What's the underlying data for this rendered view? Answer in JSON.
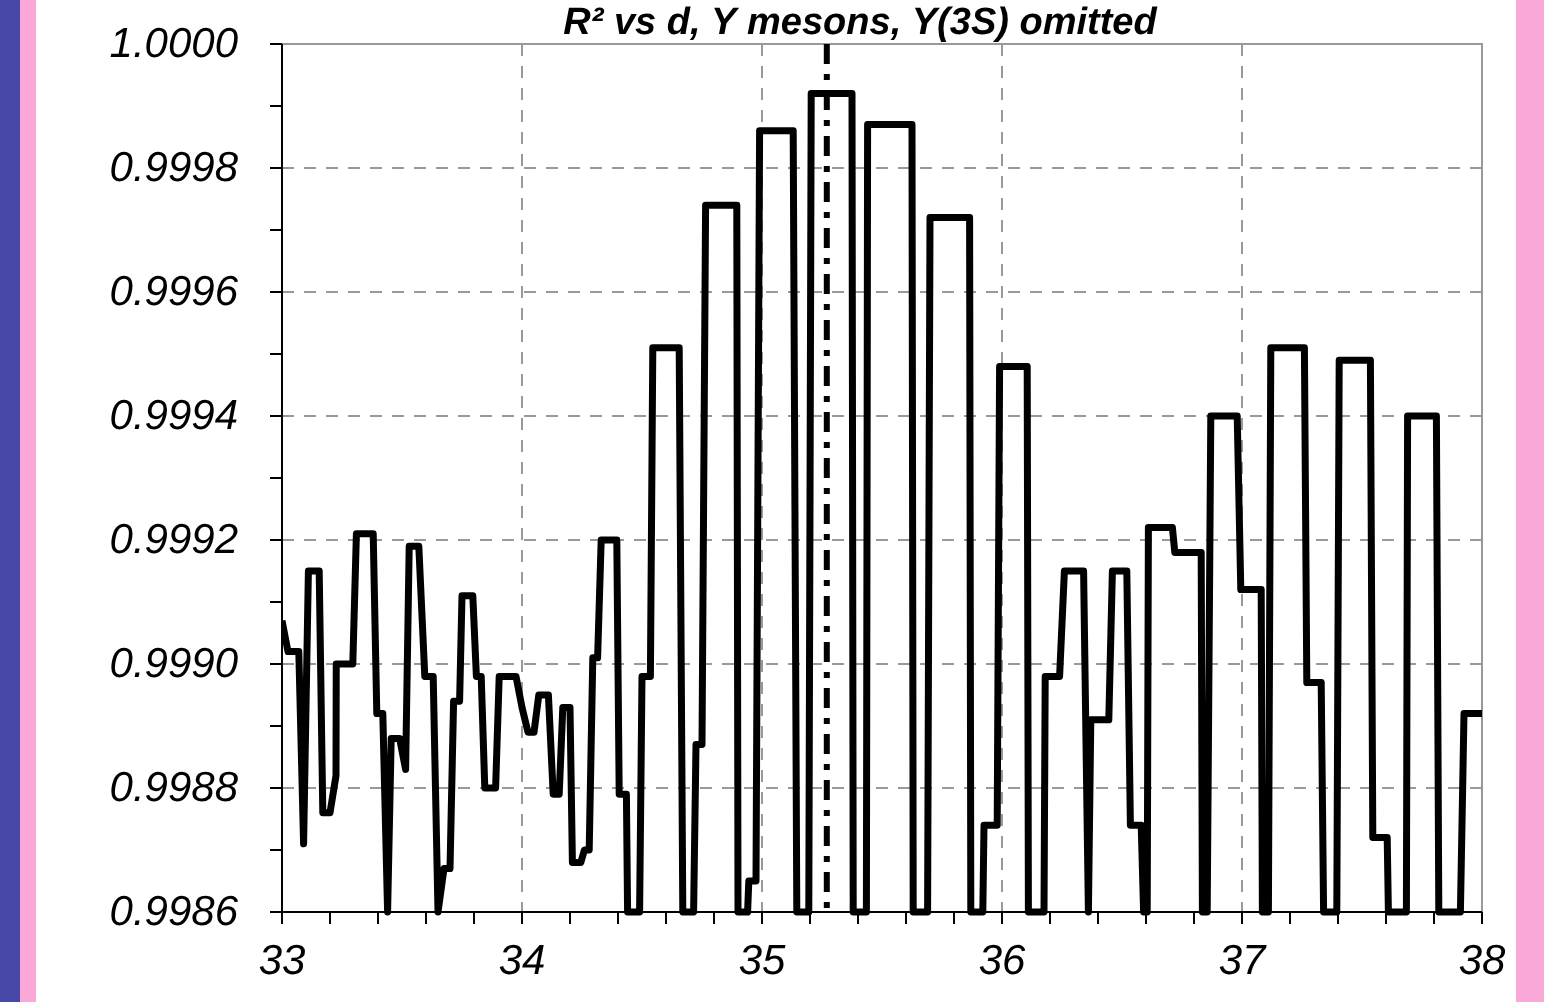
{
  "chart_data": {
    "type": "line",
    "title": "R² vs d, Υ mesons, Υ(3S) omitted",
    "x": [
      33.0,
      33.025,
      33.07,
      33.09,
      33.11,
      33.155,
      33.17,
      33.2,
      33.225,
      33.226,
      33.295,
      33.31,
      33.38,
      33.395,
      33.42,
      33.44,
      33.455,
      33.49,
      33.515,
      33.53,
      33.57,
      33.595,
      33.63,
      33.65,
      33.675,
      33.7,
      33.715,
      33.74,
      33.75,
      33.795,
      33.81,
      33.83,
      33.845,
      33.89,
      33.905,
      33.975,
      34.0,
      34.025,
      34.05,
      34.07,
      34.11,
      34.13,
      34.155,
      34.17,
      34.2,
      34.21,
      34.245,
      34.26,
      34.28,
      34.295,
      34.315,
      34.33,
      34.395,
      34.405,
      34.435,
      34.44,
      34.49,
      34.5,
      34.535,
      34.545,
      34.655,
      34.67,
      34.715,
      34.725,
      34.75,
      34.765,
      34.895,
      34.9,
      34.94,
      34.945,
      34.975,
      34.99,
      35.13,
      35.145,
      35.195,
      35.205,
      35.375,
      35.38,
      35.435,
      35.44,
      35.625,
      35.63,
      35.69,
      35.7,
      35.865,
      35.87,
      35.92,
      35.925,
      35.98,
      35.99,
      36.105,
      36.11,
      36.175,
      36.18,
      36.24,
      36.26,
      36.34,
      36.36,
      36.37,
      36.445,
      36.46,
      36.52,
      36.535,
      36.58,
      36.59,
      36.605,
      36.61,
      36.71,
      36.72,
      36.83,
      36.835,
      36.855,
      36.87,
      36.98,
      36.995,
      37.08,
      37.085,
      37.11,
      37.12,
      37.26,
      37.27,
      37.33,
      37.34,
      37.395,
      37.405,
      37.535,
      37.545,
      37.605,
      37.61,
      37.685,
      37.69,
      37.81,
      37.82,
      37.91,
      37.925,
      38.0
    ],
    "series": [
      {
        "color": "#000000",
        "values": [
          0.99907,
          0.99902,
          0.99902,
          0.99871,
          0.99915,
          0.99915,
          0.99876,
          0.99876,
          0.99882,
          0.999,
          0.999,
          0.99921,
          0.99921,
          0.99892,
          0.99892,
          0.9986,
          0.99888,
          0.99888,
          0.99883,
          0.99919,
          0.99919,
          0.99898,
          0.99898,
          0.9986,
          0.99867,
          0.99867,
          0.99894,
          0.99894,
          0.99911,
          0.99911,
          0.99898,
          0.99898,
          0.9988,
          0.9988,
          0.99898,
          0.99898,
          0.99893,
          0.99889,
          0.99889,
          0.99895,
          0.99895,
          0.99879,
          0.99879,
          0.99893,
          0.99893,
          0.99868,
          0.99868,
          0.9987,
          0.9987,
          0.99901,
          0.99901,
          0.9992,
          0.9992,
          0.99879,
          0.99879,
          0.9986,
          0.9986,
          0.99898,
          0.99898,
          0.99951,
          0.99951,
          0.9986,
          0.9986,
          0.99887,
          0.99887,
          0.99974,
          0.99974,
          0.9986,
          0.9986,
          0.99865,
          0.99865,
          0.99986,
          0.99986,
          0.9986,
          0.9986,
          0.99992,
          0.99992,
          0.9986,
          0.9986,
          0.99987,
          0.99987,
          0.9986,
          0.9986,
          0.99972,
          0.99972,
          0.9986,
          0.9986,
          0.99874,
          0.99874,
          0.99948,
          0.99948,
          0.9986,
          0.9986,
          0.99898,
          0.99898,
          0.99915,
          0.99915,
          0.9986,
          0.99891,
          0.99891,
          0.99915,
          0.99915,
          0.99874,
          0.99874,
          0.9986,
          0.9986,
          0.99922,
          0.99922,
          0.99918,
          0.99918,
          0.9986,
          0.9986,
          0.9994,
          0.9994,
          0.99912,
          0.99912,
          0.9986,
          0.9986,
          0.99951,
          0.99951,
          0.99897,
          0.99897,
          0.9986,
          0.9986,
          0.99949,
          0.99949,
          0.99872,
          0.99872,
          0.9986,
          0.9986,
          0.9994,
          0.9994,
          0.9986,
          0.9986,
          0.99892,
          0.99892
        ]
      }
    ],
    "xlim": [
      33,
      38
    ],
    "xticks": [
      33,
      {
        "value": 33.2,
        "label": null
      },
      {
        "value": 33.4,
        "label": null
      },
      {
        "value": 33.6,
        "label": null
      },
      {
        "value": 33.8,
        "label": null
      },
      34,
      {
        "value": 34.2,
        "label": null
      },
      {
        "value": 34.4,
        "label": null
      },
      {
        "value": 34.6,
        "label": null
      },
      {
        "value": 34.8,
        "label": null
      },
      35,
      {
        "value": 35.2,
        "label": null
      },
      {
        "value": 35.4,
        "label": null
      },
      {
        "value": 35.6,
        "label": null
      },
      {
        "value": 35.8,
        "label": null
      },
      36,
      {
        "value": 36.2,
        "label": null
      },
      {
        "value": 36.4,
        "label": null
      },
      {
        "value": 36.6,
        "label": null
      },
      {
        "value": 36.8,
        "label": null
      },
      37,
      {
        "value": 37.2,
        "label": null
      },
      {
        "value": 37.4,
        "label": null
      },
      {
        "value": 37.6,
        "label": null
      },
      {
        "value": 37.8,
        "label": null
      },
      38
    ],
    "ylim": [
      0.9986,
      1.0
    ],
    "yticks": [
      {
        "value": 0.9986,
        "label": "0.9986"
      },
      {
        "value": 0.9987,
        "label": null
      },
      {
        "value": 0.9988,
        "label": "0.9988"
      },
      {
        "value": 0.9989,
        "label": null
      },
      {
        "value": 0.999,
        "label": "0.9990"
      },
      {
        "value": 0.9991,
        "label": null
      },
      {
        "value": 0.9992,
        "label": "0.9992"
      },
      {
        "value": 0.9993,
        "label": null
      },
      {
        "value": 0.9994,
        "label": "0.9994"
      },
      {
        "value": 0.9995,
        "label": null
      },
      {
        "value": 0.9996,
        "label": "0.9996"
      },
      {
        "value": 0.9997,
        "label": null
      },
      {
        "value": 0.9998,
        "label": "0.9998"
      },
      {
        "value": 0.9999,
        "label": null
      },
      {
        "value": 1.0,
        "label": "1.0000"
      }
    ],
    "grid": true,
    "line_style": "solid",
    "ref_lines": [
      {
        "axis": "x",
        "value": 35.27,
        "color": "#000000",
        "line_style": "dashed"
      }
    ]
  }
}
